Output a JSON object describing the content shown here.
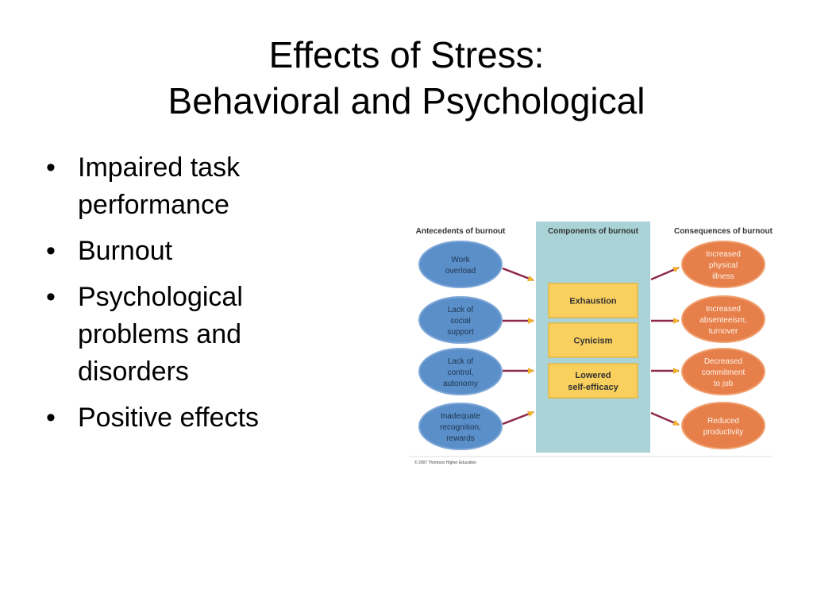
{
  "title": {
    "line1": "Effects of Stress:",
    "line2": "Behavioral and Psychological"
  },
  "bullets": [
    "Impaired task performance",
    "Burnout",
    "Psychological problems and disorders",
    "Positive effects"
  ],
  "diagram": {
    "headers": {
      "antecedents": "Antecedents of burnout",
      "components": "Components of burnout",
      "consequences": "Consequences of burnout"
    },
    "antecedents": [
      [
        "Work",
        "overload"
      ],
      [
        "Lack of",
        "social",
        "support"
      ],
      [
        "Lack of",
        "control,",
        "autonomy"
      ],
      [
        "Inadequate",
        "recognition,",
        "rewards"
      ]
    ],
    "components": [
      [
        "Exhaustion"
      ],
      [
        "Cynicism"
      ],
      [
        "Lowered",
        "self-efficacy"
      ]
    ],
    "consequences": [
      [
        "Increased",
        "physical",
        "illness"
      ],
      [
        "Increased",
        "absenteeism,",
        "turnover"
      ],
      [
        "Decreased",
        "commitment",
        "to job"
      ],
      [
        "Reduced",
        "productivity"
      ]
    ],
    "copyright": "© 2007 Thomson Higher Education",
    "colors": {
      "antecedent": "#5b8fc9",
      "component_panel": "#a9d3d6",
      "component_box": "#f9cf5e",
      "consequence": "#e67f4a",
      "arrow": "#8e2a4a"
    }
  }
}
